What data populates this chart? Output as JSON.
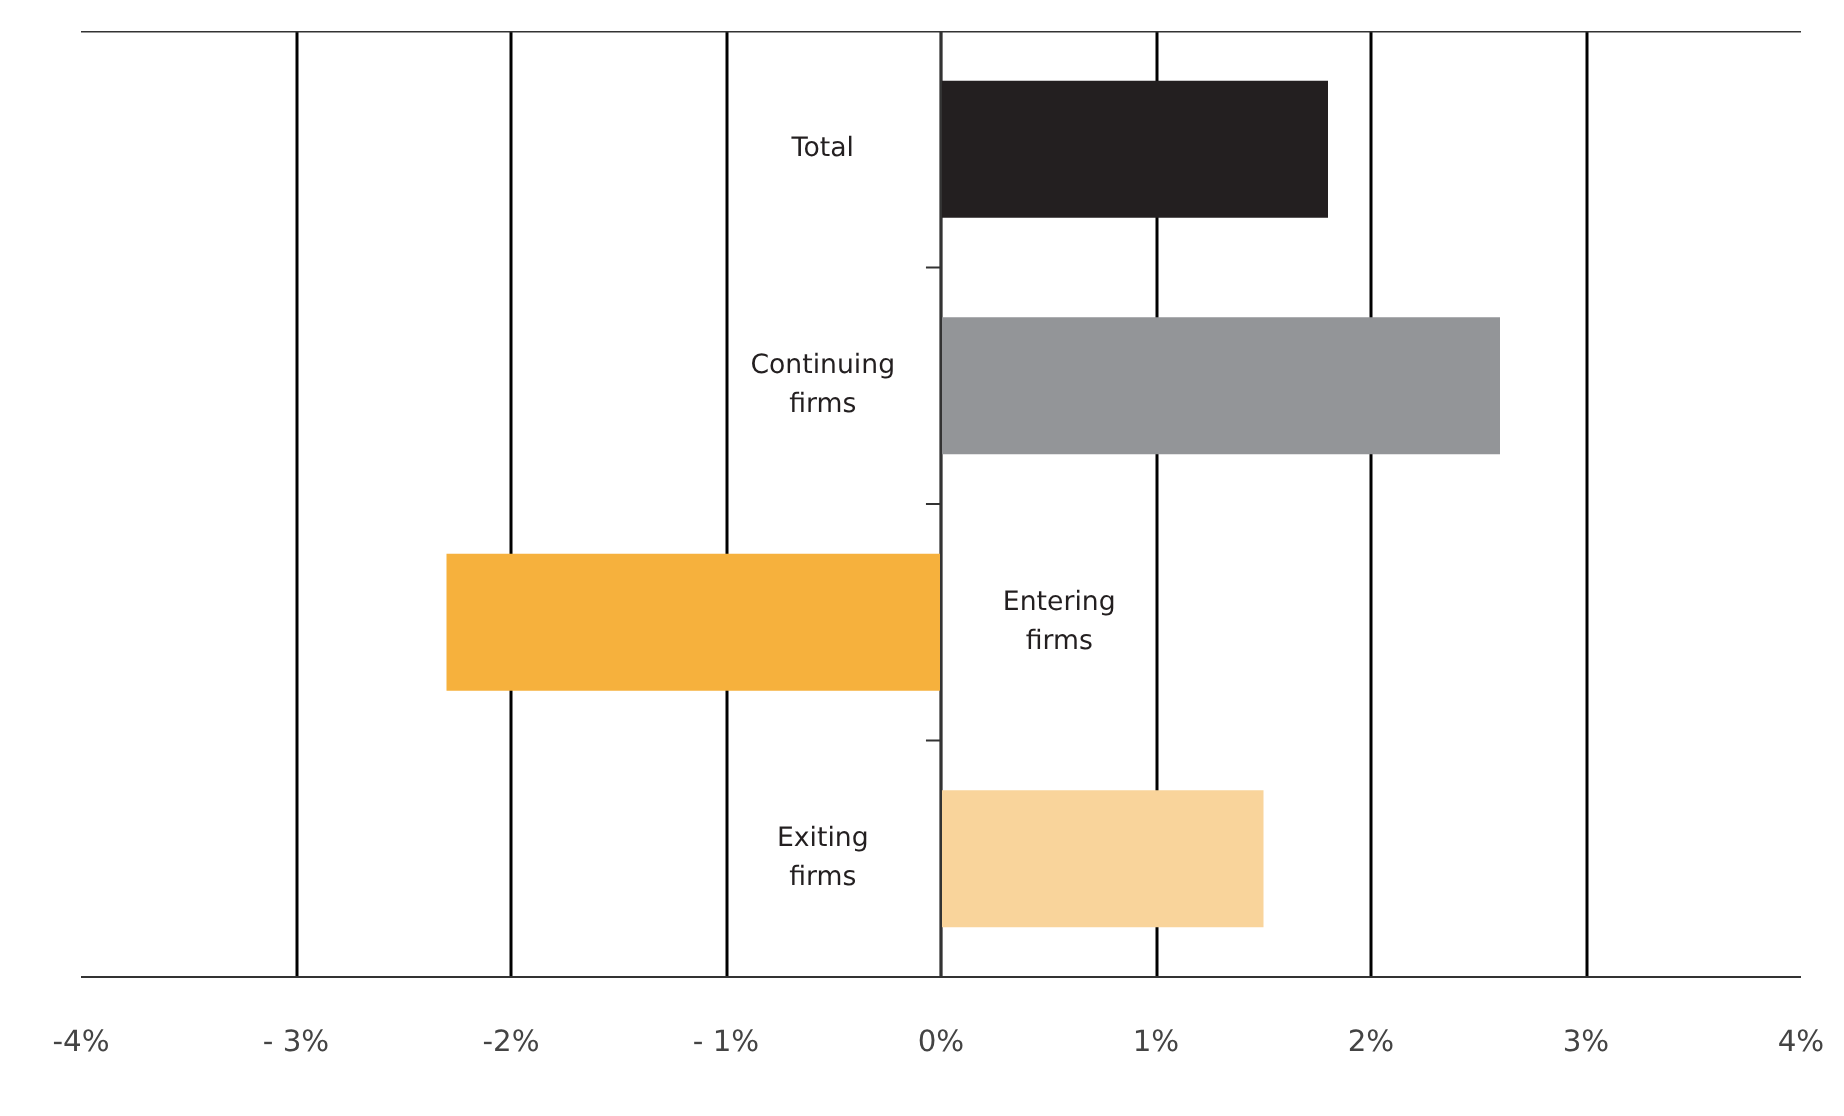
{
  "chart_data": {
    "type": "bar",
    "orientation": "horizontal",
    "categories": [
      "Total",
      "Continuing firms",
      "Entering firms",
      "Exiting firms"
    ],
    "values": [
      1.8,
      2.6,
      -2.3,
      1.5
    ],
    "colors": [
      "#231f20",
      "#939598",
      "#f6b13d",
      "#f9d49b"
    ],
    "xlim": [
      -4,
      4
    ],
    "xticks": [
      {
        "value": -4,
        "label": "-4%"
      },
      {
        "value": -3,
        "label": "- 3%"
      },
      {
        "value": -2,
        "label": "-2%"
      },
      {
        "value": -1,
        "label": "- 1%"
      },
      {
        "value": 0,
        "label": "0%"
      },
      {
        "value": 1,
        "label": "1%"
      },
      {
        "value": 2,
        "label": "2%"
      },
      {
        "value": 3,
        "label": "3%"
      },
      {
        "value": 4,
        "label": "4%"
      }
    ],
    "grid": "x",
    "legend": false
  }
}
